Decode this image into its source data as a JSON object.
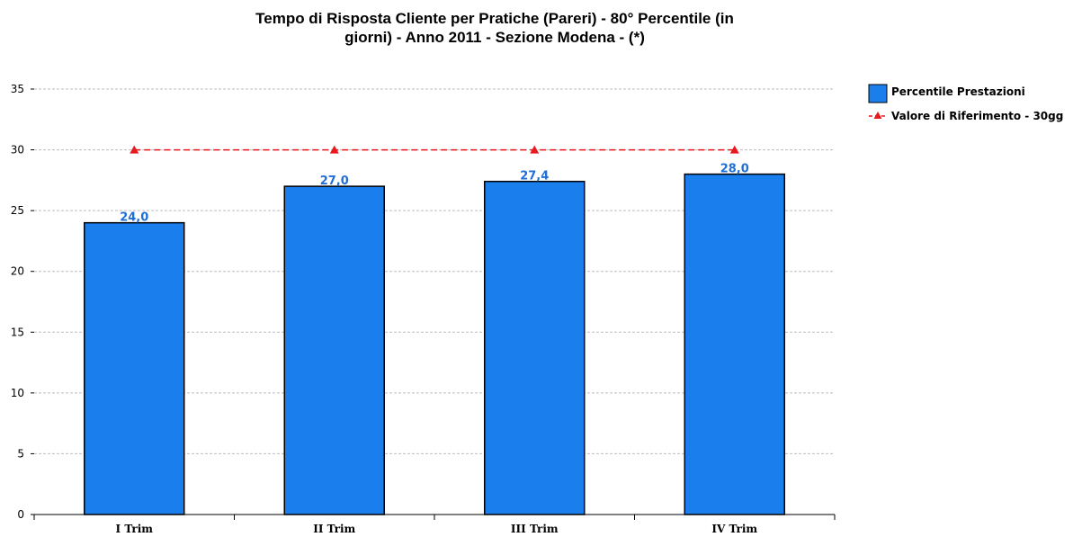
{
  "chart_data": {
    "type": "bar",
    "title_line1": "Tempo di Risposta Cliente per Pratiche (Pareri) -  80° Percentile (in",
    "title_line2": "giorni) - Anno 2011 - Sezione Modena - (*)",
    "categories": [
      "I Trim",
      "II Trim",
      "III Trim",
      "IV Trim"
    ],
    "series": [
      {
        "name": "Percentile Prestazioni",
        "values": [
          24.0,
          27.0,
          27.4,
          28.0
        ],
        "color": "#1a7fec",
        "value_labels": [
          "24,0",
          "27,0",
          "27,4",
          "28,0"
        ]
      },
      {
        "name": "Valore di Riferimento - 30gg",
        "values": [
          30,
          30,
          30,
          30
        ],
        "color": "#e8191e",
        "style": "dashed-line-triangle-markers"
      }
    ],
    "xlabel": "",
    "ylabel": "",
    "ylim": [
      0,
      35
    ],
    "yticks": [
      0,
      5,
      10,
      15,
      20,
      25,
      30,
      35
    ],
    "grid": true,
    "legend_position": "right"
  }
}
